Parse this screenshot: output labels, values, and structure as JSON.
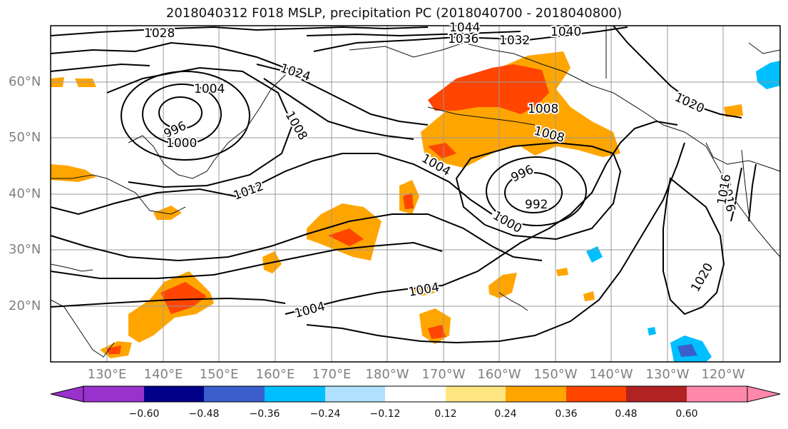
{
  "title": "2018040312 F018 MSLP, precipitation PC (2018040700 - 2018040800)",
  "lat_labels": [
    "60°N",
    "50°N",
    "40°N",
    "30°N",
    "20°N"
  ],
  "lon_labels": [
    "130°E",
    "140°E",
    "150°E",
    "160°E",
    "170°E",
    "180°W",
    "170°W",
    "160°W",
    "150°W",
    "140°W",
    "130°W",
    "120°W"
  ],
  "isobar_labels": [
    "1028",
    "1044",
    "1036",
    "1032",
    "1040",
    "1024",
    "1004",
    "1008",
    "996",
    "1000",
    "1020",
    "1008",
    "1008",
    "1012",
    "1004",
    "996",
    "992",
    "1000",
    "1016",
    "1016",
    "1020",
    "1004",
    "1004"
  ],
  "colorbar": {
    "ticks": [
      "−0.60",
      "−0.48",
      "−0.36",
      "−0.24",
      "−0.12",
      "0.12",
      "0.24",
      "0.36",
      "0.48",
      "0.60"
    ],
    "colors": [
      "#9932cc",
      "#00008b",
      "#3a5fcd",
      "#00bfff",
      "#b0e2ff",
      "#ffffff",
      "#ffe680",
      "#ffa500",
      "#ff4500",
      "#b22222",
      "#ff88aa",
      "#ff88aa"
    ]
  }
}
